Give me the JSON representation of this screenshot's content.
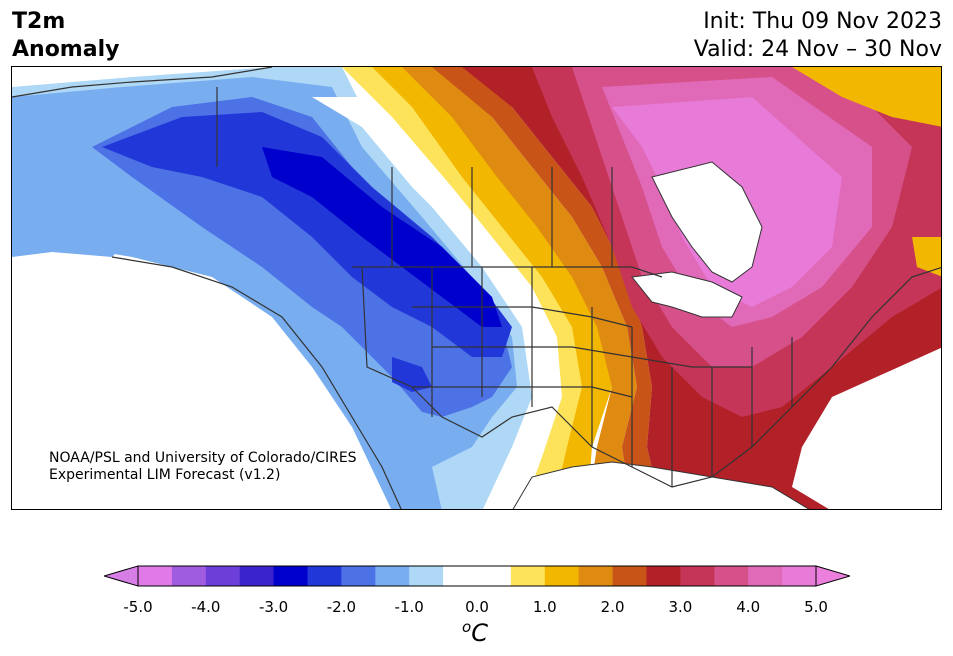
{
  "title": {
    "line1": "T2m",
    "line2": "Anomaly"
  },
  "init": "Init: Thu 09 Nov 2023",
  "valid": "Valid: 24 Nov – 30 Nov",
  "credit": {
    "line1": "NOAA/PSL and University of Colorado/CIRES",
    "line2": "Experimental LIM Forecast (v1.2)"
  },
  "colorbar": {
    "ticks": [
      "-5.0",
      "-4.0",
      "-3.0",
      "-2.0",
      "-1.0",
      "0.0",
      "1.0",
      "2.0",
      "3.0",
      "4.0",
      "5.0"
    ],
    "unit_base": "C",
    "unit_sup": "o",
    "extend": "both",
    "colors": [
      "#e07ae6",
      "#a05ce0",
      "#6e3fd8",
      "#3a22cc",
      "#0000cc",
      "#2237d8",
      "#4d72e6",
      "#78adf0",
      "#aed8f6",
      "#ffffff",
      "#ffffff",
      "#fde35a",
      "#f2b700",
      "#df8a10",
      "#c85418",
      "#b22028",
      "#c53558",
      "#d6508a",
      "#e06ab8",
      "#e87ad8"
    ],
    "min_color": "#d77de6",
    "max_color": "#ec7fdc"
  },
  "map": {
    "region": "North America",
    "variable": "2m temperature anomaly",
    "colors": {
      "darkblue": "#0000cc",
      "blue": "#2237d8",
      "midblue": "#4d72e6",
      "lightblue": "#78adf0",
      "paleblue": "#aed8f6",
      "yellow": "#fde35a",
      "gold": "#f2b700",
      "orange": "#df8a10",
      "darkorange": "#c85418",
      "red": "#b22028",
      "crimson": "#c53558",
      "rose": "#d6508a",
      "pink": "#e06ab8",
      "magenta": "#e87ad8"
    }
  }
}
